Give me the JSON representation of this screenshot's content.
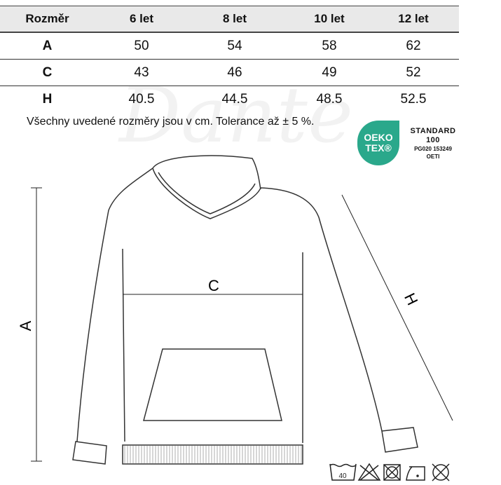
{
  "table": {
    "headers": [
      "Rozměr",
      "6 let",
      "8 let",
      "10 let",
      "12 let"
    ],
    "rows": [
      {
        "label": "A",
        "values": [
          "50",
          "54",
          "58",
          "62"
        ]
      },
      {
        "label": "C",
        "values": [
          "43",
          "46",
          "49",
          "52"
        ]
      },
      {
        "label": "H",
        "values": [
          "40.5",
          "44.5",
          "48.5",
          "52.5"
        ]
      }
    ]
  },
  "note": "Všechny uvedené rozměry jsou v cm. Tolerance až ± 5 %.",
  "watermark": "Dante",
  "oeko_tex": {
    "badge_line1": "OEKO",
    "badge_line2": "TEX®",
    "standard": "STANDARD",
    "number": "100",
    "certificate": "PG020 153249",
    "institute": "OETI",
    "color": "#2aa88b"
  },
  "diagram": {
    "label_a": "A",
    "label_c": "C",
    "label_h": "H"
  },
  "care_symbols": {
    "wash_temp": "40",
    "icons": [
      "wash-40-icon",
      "no-bleach-icon",
      "no-tumble-dry-icon",
      "iron-low-icon",
      "no-dry-clean-icon"
    ]
  }
}
